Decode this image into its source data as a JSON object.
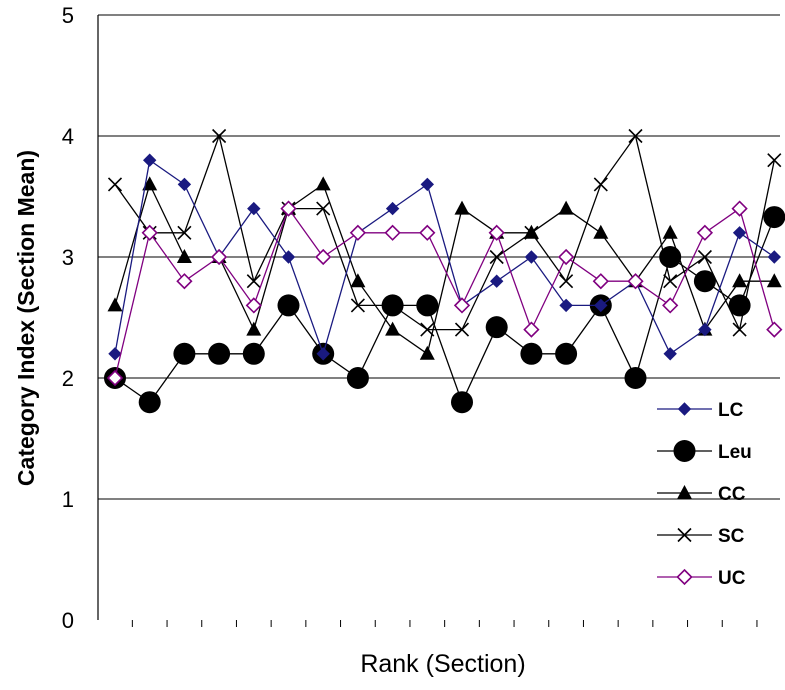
{
  "chart_data": {
    "type": "line",
    "title": "",
    "xlabel": "Rank (Section)",
    "ylabel": "Category Index (Section Mean)",
    "ylim": [
      0,
      5
    ],
    "yticks": [
      "0",
      "1",
      "2",
      "3",
      "4",
      "5"
    ],
    "x": [
      1,
      2,
      3,
      4,
      5,
      6,
      7,
      8,
      9,
      10,
      11,
      12,
      13,
      14,
      15,
      16,
      17,
      18,
      19,
      20
    ],
    "grid": "horizontal",
    "legend": "bottom-right",
    "series": [
      {
        "name": "LC",
        "color": "#1a1a80",
        "marker": "diamond-filled",
        "values": [
          2.2,
          3.8,
          3.6,
          3.0,
          3.4,
          3.0,
          2.2,
          3.2,
          3.4,
          3.6,
          2.6,
          2.8,
          3.0,
          2.6,
          2.6,
          2.8,
          2.2,
          2.4,
          3.2,
          3.0
        ]
      },
      {
        "name": "Leu",
        "color": "#000000",
        "marker": "circle-filled",
        "values": [
          2.0,
          1.8,
          2.2,
          2.2,
          2.2,
          2.6,
          2.2,
          2.0,
          2.6,
          2.6,
          1.8,
          2.42,
          2.2,
          2.2,
          2.6,
          2.0,
          3.0,
          2.8,
          2.6,
          3.33
        ]
      },
      {
        "name": "CC",
        "color": "#000000",
        "marker": "triangle-filled",
        "values": [
          2.6,
          3.6,
          3.0,
          3.0,
          2.4,
          3.4,
          3.6,
          2.8,
          2.4,
          2.2,
          3.4,
          3.2,
          3.2,
          3.4,
          3.2,
          2.8,
          3.2,
          2.4,
          2.8,
          2.8
        ]
      },
      {
        "name": "SC",
        "color": "#000000",
        "marker": "x",
        "values": [
          3.6,
          3.2,
          3.2,
          4.0,
          2.8,
          3.4,
          3.4,
          2.6,
          2.6,
          2.4,
          2.4,
          3.0,
          3.2,
          2.8,
          3.6,
          4.0,
          2.8,
          3.0,
          2.4,
          3.8
        ]
      },
      {
        "name": "UC",
        "color": "#800080",
        "marker": "diamond-open",
        "values": [
          2.0,
          3.2,
          2.8,
          3.0,
          2.6,
          3.4,
          3.0,
          3.2,
          3.2,
          3.2,
          2.6,
          3.2,
          2.4,
          3.0,
          2.8,
          2.8,
          2.6,
          3.2,
          3.4,
          2.4
        ]
      }
    ]
  }
}
